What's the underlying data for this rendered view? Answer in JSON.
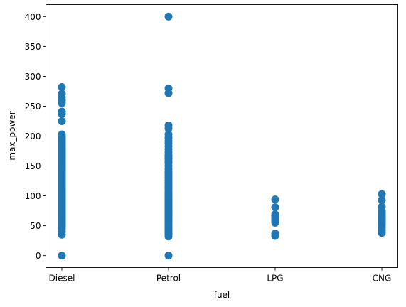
{
  "chart_data": {
    "type": "scatter",
    "title": "",
    "xlabel": "fuel",
    "ylabel": "max_power",
    "categories": [
      "Diesel",
      "Petrol",
      "LPG",
      "CNG"
    ],
    "ylim": [
      -20,
      420
    ],
    "yticks": [
      0,
      50,
      100,
      150,
      200,
      250,
      300,
      350,
      400
    ],
    "grid": false,
    "legend": "none",
    "color": "#1f77b4",
    "series": [
      {
        "category": "Diesel",
        "values": [
          0,
          35,
          40,
          45,
          48,
          50,
          52,
          55,
          58,
          60,
          62,
          63,
          65,
          67,
          68,
          70,
          72,
          74,
          75,
          76,
          78,
          80,
          82,
          84,
          85,
          86,
          88,
          90,
          92,
          94,
          95,
          98,
          100,
          102,
          104,
          105,
          108,
          110,
          112,
          115,
          118,
          120,
          122,
          125,
          128,
          130,
          132,
          135,
          138,
          140,
          142,
          145,
          148,
          150,
          152,
          155,
          158,
          160,
          162,
          165,
          168,
          170,
          172,
          175,
          178,
          180,
          182,
          185,
          188,
          190,
          192,
          195,
          198,
          200,
          203,
          225,
          237,
          241,
          255,
          260,
          265,
          271,
          282
        ]
      },
      {
        "category": "Petrol",
        "values": [
          0,
          32,
          35,
          38,
          40,
          42,
          45,
          47,
          50,
          52,
          55,
          57,
          60,
          62,
          64,
          66,
          68,
          70,
          72,
          74,
          76,
          78,
          80,
          82,
          84,
          86,
          88,
          90,
          92,
          94,
          96,
          98,
          100,
          103,
          106,
          110,
          113,
          116,
          120,
          123,
          126,
          130,
          134,
          138,
          141,
          145,
          150,
          155,
          158,
          162,
          165,
          168,
          173,
          178,
          183,
          188,
          192,
          197,
          203,
          213,
          218,
          272,
          280,
          400
        ]
      },
      {
        "category": "LPG",
        "values": [
          33,
          37,
          55,
          57,
          58,
          59,
          60,
          61,
          62,
          63,
          64,
          65,
          67,
          69,
          81,
          94
        ]
      },
      {
        "category": "CNG",
        "values": [
          38,
          42,
          46,
          50,
          53,
          55,
          57,
          58,
          59,
          60,
          62,
          64,
          66,
          68,
          70,
          72,
          75,
          82,
          93,
          103
        ]
      }
    ]
  }
}
